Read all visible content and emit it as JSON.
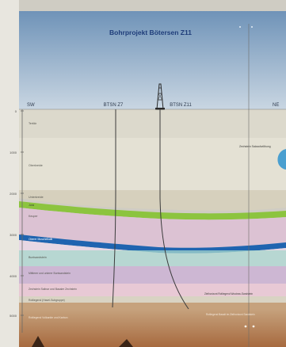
{
  "title": "Bohrprojekt Bötersen Z11",
  "directions": {
    "left": "SW",
    "right": "NE"
  },
  "wells": [
    {
      "name": "BTSN Z7"
    },
    {
      "name": "BTSN Z11"
    }
  ],
  "depth_ticks": [
    "0",
    "1000",
    "2000",
    "3000",
    "4000",
    "5000"
  ],
  "layers": [
    {
      "name": "Tertiär",
      "color": "#d8d6c8"
    },
    {
      "name": "Oberkreide",
      "color": "#e2e0d2"
    },
    {
      "name": "Unterkreide",
      "color": "#d7d2c0"
    },
    {
      "name": "Jura",
      "color": "#8cc43f"
    },
    {
      "name": "Keuper",
      "color": "#dcc2d3"
    },
    {
      "name": "Oberer Muschelkalk",
      "color": "#1f64b0"
    },
    {
      "name": "Buntsandstein",
      "color": "#a7d7cc"
    },
    {
      "name": "Mittlerer und unterer Buntsandstein",
      "color": "#cdb7d3"
    },
    {
      "name": "Zechstein Salinar und Basaler Zechstein",
      "color": "#e8c9d5"
    },
    {
      "name": "Rotliegend (Havel-Subgruppe)",
      "color": "#c6a27d"
    },
    {
      "name": "Rotliegend Vulkanite und Karbon",
      "color": "#b27045"
    }
  ],
  "annotations": {
    "salt_dome": "Zechstein Salzaufwölbung",
    "z11_target": "Zielhorizont Rotliegend Wustrow-Sandstein",
    "z11_bottom": "Rotliegend Basalt im Zielhorizont Sandstein"
  },
  "colors": {
    "sky_top": "#6f93b8",
    "sky_bottom": "#c6d4e0",
    "title": "#1f3d7a",
    "ground": "#e4e0d4",
    "jura": "#8cc43f",
    "muschelkalk": "#1f64b0"
  }
}
